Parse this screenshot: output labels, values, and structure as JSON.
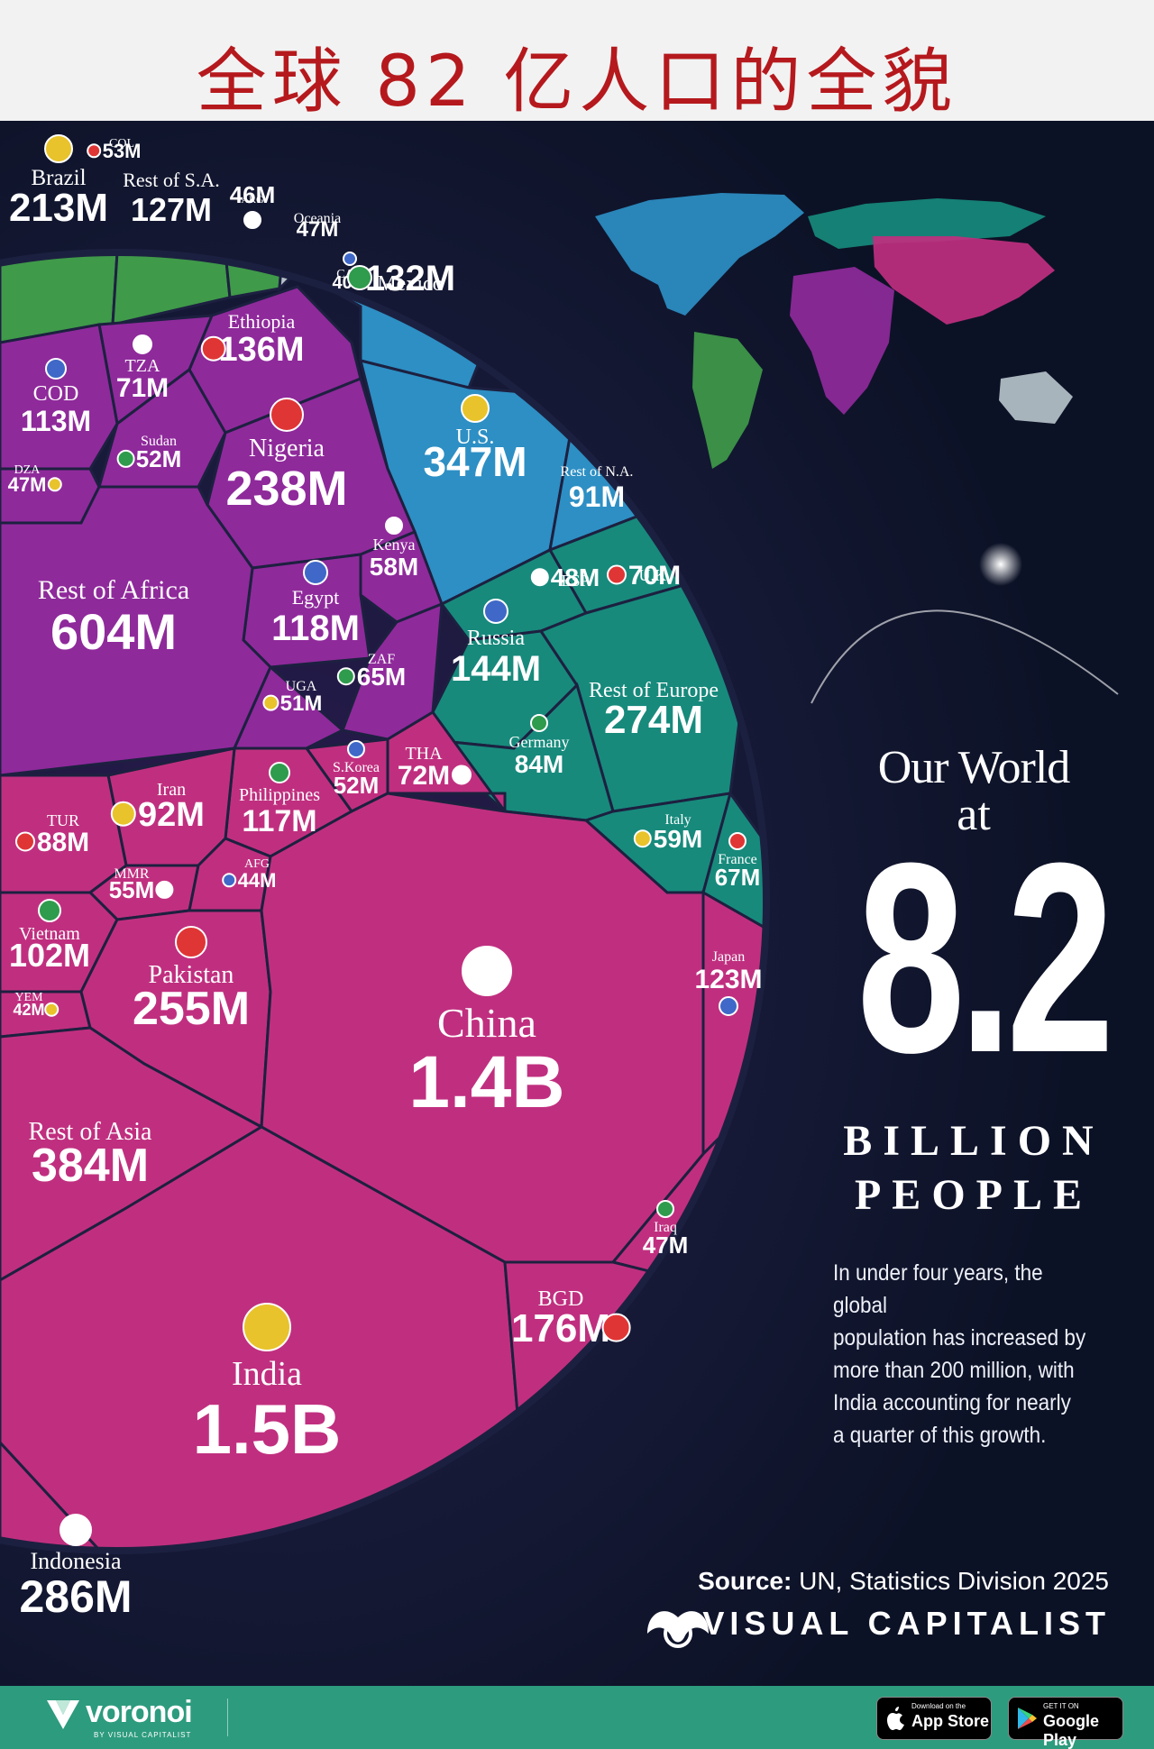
{
  "banner": {
    "title": "全球 82 亿人口的全貌"
  },
  "headline": {
    "line1": "Our World",
    "line2": "at",
    "number": "8.2",
    "unit1": "BILLION",
    "unit2": "PEOPLE"
  },
  "blurb": [
    "In under four years, the global",
    "population has increased by",
    "more than 200 million, with",
    "India accounting for nearly",
    "a quarter of this growth."
  ],
  "source": {
    "label": "Source:",
    "text": "UN, Statistics Division 2025"
  },
  "brand": {
    "name": "VISUAL CAPITALIST"
  },
  "footer": {
    "voronoi": "voronoi",
    "voronoi_sub": "BY VISUAL CAPITALIST",
    "appstore_small": "Download on the",
    "appstore_big": "App Store",
    "googleplay_small": "GET IT ON",
    "googleplay_big": "Google Play"
  },
  "colors": {
    "south_america": "#3f9a49",
    "africa": "#8f2a9b",
    "north_america": "#2d8fc4",
    "europe": "#178a7c",
    "asia": "#c02f7f",
    "oceania": "#b6c2c9",
    "background": "#171a38",
    "banner_text": "#b5191d",
    "footer": "#2d9b7e"
  },
  "chart_data": {
    "type": "voronoi",
    "title": "Our World at 8.2 Billion People",
    "total": "8.2 billion",
    "regions": [
      {
        "region": "South America",
        "cells": [
          {
            "name": "Brazil",
            "value": "213M"
          },
          {
            "name": "COL",
            "value": "53M"
          },
          {
            "name": "Rest of S.A.",
            "value": "127M"
          },
          {
            "name": "ARG",
            "value": "46M"
          }
        ]
      },
      {
        "region": "Oceania",
        "cells": [
          {
            "name": "Oceania",
            "value": "47M"
          }
        ]
      },
      {
        "region": "North America",
        "cells": [
          {
            "name": "CAN",
            "value": "40M"
          },
          {
            "name": "Mexico",
            "value": "132M"
          },
          {
            "name": "U.S.",
            "value": "347M"
          },
          {
            "name": "Rest of N.A.",
            "value": "91M"
          }
        ]
      },
      {
        "region": "Africa",
        "cells": [
          {
            "name": "Ethiopia",
            "value": "136M"
          },
          {
            "name": "TZA",
            "value": "71M"
          },
          {
            "name": "COD",
            "value": "113M"
          },
          {
            "name": "Sudan",
            "value": "52M"
          },
          {
            "name": "DZA",
            "value": "47M"
          },
          {
            "name": "Nigeria",
            "value": "238M"
          },
          {
            "name": "Kenya",
            "value": "58M"
          },
          {
            "name": "Egypt",
            "value": "118M"
          },
          {
            "name": "Rest of Africa",
            "value": "604M"
          },
          {
            "name": "ZAF",
            "value": "65M"
          },
          {
            "name": "UGA",
            "value": "51M"
          }
        ]
      },
      {
        "region": "Europe",
        "cells": [
          {
            "name": "U.K.",
            "value": "70M"
          },
          {
            "name": "ESP",
            "value": "48M"
          },
          {
            "name": "Russia",
            "value": "144M"
          },
          {
            "name": "Rest of Europe",
            "value": "274M"
          },
          {
            "name": "Germany",
            "value": "84M"
          },
          {
            "name": "Italy",
            "value": "59M"
          },
          {
            "name": "France",
            "value": "67M"
          }
        ]
      },
      {
        "region": "Asia",
        "cells": [
          {
            "name": "THA",
            "value": "72M"
          },
          {
            "name": "S.Korea",
            "value": "52M"
          },
          {
            "name": "Philippines",
            "value": "117M"
          },
          {
            "name": "Iran",
            "value": "92M"
          },
          {
            "name": "TUR",
            "value": "88M"
          },
          {
            "name": "MMR",
            "value": "55M"
          },
          {
            "name": "AFG",
            "value": "44M"
          },
          {
            "name": "Vietnam",
            "value": "102M"
          },
          {
            "name": "YEM",
            "value": "42M"
          },
          {
            "name": "Pakistan",
            "value": "255M"
          },
          {
            "name": "China",
            "value": "1.4B"
          },
          {
            "name": "Japan",
            "value": "123M"
          },
          {
            "name": "Rest of Asia",
            "value": "384M"
          },
          {
            "name": "Iraq",
            "value": "47M"
          },
          {
            "name": "India",
            "value": "1.5B"
          },
          {
            "name": "BGD",
            "value": "176M"
          },
          {
            "name": "Indonesia",
            "value": "286M"
          }
        ]
      }
    ]
  }
}
